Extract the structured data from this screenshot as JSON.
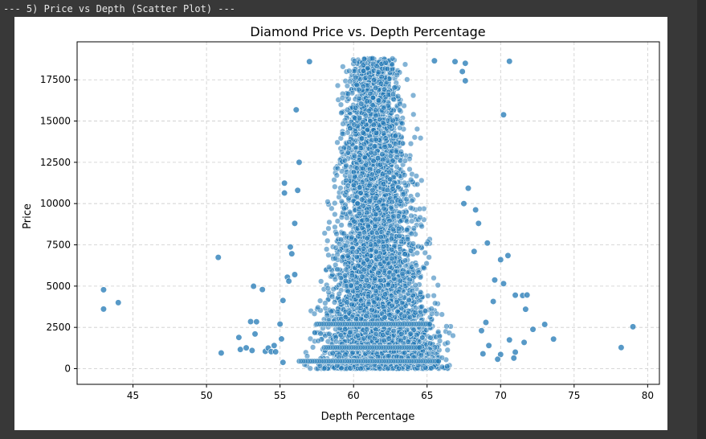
{
  "cell": {
    "header": "--- 5) Price vs Depth (Scatter Plot) ---"
  },
  "chart_data": {
    "type": "scatter",
    "title": "Diamond Price vs. Depth Percentage",
    "xlabel": "Depth Percentage",
    "ylabel": "Price",
    "xlim": [
      41.2,
      80.8
    ],
    "ylim": [
      -950,
      19800
    ],
    "xticks": [
      45,
      50,
      55,
      60,
      65,
      70,
      75,
      80
    ],
    "yticks": [
      0,
      2500,
      5000,
      7500,
      10000,
      12500,
      15000,
      17500
    ],
    "grid": true,
    "colors": {
      "point": "#1f77b4",
      "point_edge": "#ffffff",
      "grid": "#cccccc"
    },
    "series": [
      {
        "points": [
          [
            43.0,
            4780
          ],
          [
            43.0,
            3610
          ],
          [
            44.0,
            4000
          ],
          [
            50.8,
            6740
          ],
          [
            51.0,
            950
          ],
          [
            52.2,
            1890
          ],
          [
            52.3,
            1160
          ],
          [
            52.7,
            1260
          ],
          [
            53.0,
            2850
          ],
          [
            53.1,
            1100
          ],
          [
            53.2,
            4990
          ],
          [
            53.3,
            2100
          ],
          [
            53.4,
            2840
          ],
          [
            53.8,
            4790
          ],
          [
            54.0,
            1050
          ],
          [
            54.2,
            1250
          ],
          [
            54.4,
            1030
          ],
          [
            54.6,
            1400
          ],
          [
            54.7,
            1020
          ],
          [
            55.0,
            2700
          ],
          [
            55.1,
            1800
          ],
          [
            55.2,
            380
          ],
          [
            55.2,
            4130
          ],
          [
            55.3,
            11240
          ],
          [
            55.3,
            10640
          ],
          [
            55.5,
            5540
          ],
          [
            55.6,
            5300
          ],
          [
            55.7,
            7370
          ],
          [
            55.8,
            6960
          ],
          [
            56.0,
            5700
          ],
          [
            56.0,
            8800
          ],
          [
            56.2,
            10800
          ],
          [
            56.3,
            12500
          ],
          [
            56.1,
            15680
          ],
          [
            57.0,
            18600
          ],
          [
            65.5,
            18650
          ],
          [
            66.9,
            18600
          ],
          [
            67.4,
            18000
          ],
          [
            67.6,
            17440
          ],
          [
            67.6,
            18500
          ],
          [
            70.6,
            18620
          ],
          [
            70.2,
            15380
          ],
          [
            70.0,
            6600
          ],
          [
            70.5,
            6850
          ],
          [
            70.2,
            5150
          ],
          [
            71.0,
            4450
          ],
          [
            71.5,
            4430
          ],
          [
            71.8,
            4460
          ],
          [
            71.7,
            3600
          ],
          [
            72.2,
            2380
          ],
          [
            73.0,
            2680
          ],
          [
            73.6,
            1790
          ],
          [
            71.6,
            1590
          ],
          [
            70.6,
            1740
          ],
          [
            71.0,
            1000
          ],
          [
            70.9,
            640
          ],
          [
            70.0,
            860
          ],
          [
            69.8,
            570
          ],
          [
            69.5,
            4070
          ],
          [
            69.6,
            5370
          ],
          [
            69.1,
            7610
          ],
          [
            68.3,
            9620
          ],
          [
            68.5,
            8800
          ],
          [
            67.8,
            10930
          ],
          [
            67.5,
            10000
          ],
          [
            68.2,
            7100
          ],
          [
            69.0,
            2800
          ],
          [
            68.7,
            2300
          ],
          [
            69.2,
            1400
          ],
          [
            68.8,
            900
          ],
          [
            78.2,
            1280
          ],
          [
            79.0,
            2540
          ]
        ],
        "horizontal_bands": [
          {
            "price": 2700,
            "from": 57.5,
            "to": 65.2
          },
          {
            "price": 450,
            "from": 56.3,
            "to": 65.8
          },
          {
            "price": 1280,
            "from": 58.0,
            "to": 64.5
          }
        ],
        "dense_region": [
          {
            "price": 0,
            "x_from": 55.0,
            "x_to": 68.5
          },
          {
            "price": 2500,
            "x_from": 55.5,
            "x_to": 68.0
          },
          {
            "price": 5000,
            "x_from": 56.3,
            "x_to": 66.8
          },
          {
            "price": 7500,
            "x_from": 56.8,
            "x_to": 66.2
          },
          {
            "price": 10000,
            "x_from": 57.2,
            "x_to": 65.8
          },
          {
            "price": 12500,
            "x_from": 57.5,
            "x_to": 65.3
          },
          {
            "price": 15000,
            "x_from": 57.8,
            "x_to": 64.8
          },
          {
            "price": 17500,
            "x_from": 58.0,
            "x_to": 64.5
          },
          {
            "price": 18800,
            "x_from": 58.6,
            "x_to": 64.0
          }
        ]
      }
    ]
  }
}
